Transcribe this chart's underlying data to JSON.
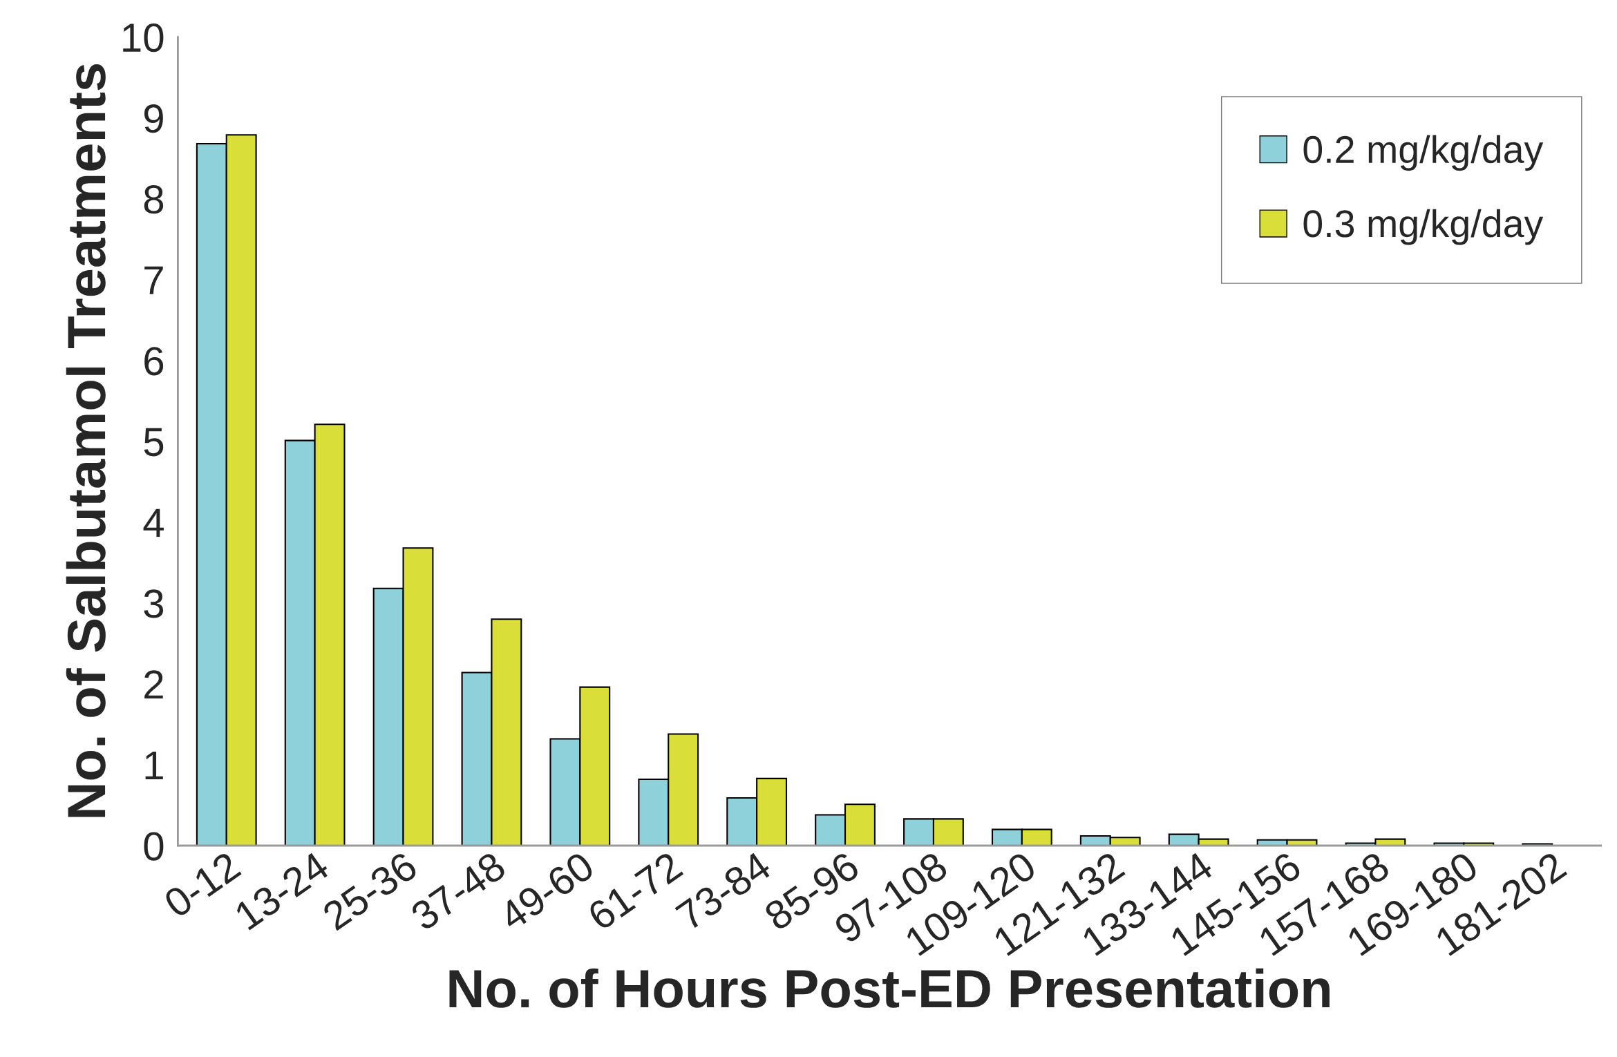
{
  "chart_data": {
    "type": "bar",
    "xlabel": "No. of Hours Post-ED Presentation",
    "ylabel": "No. of Salbutamol Treatments",
    "categories": [
      "0-12",
      "13-24",
      "25-36",
      "37-48",
      "49-60",
      "61-72",
      "73-84",
      "85-96",
      "97-108",
      "109-120",
      "121-132",
      "133-144",
      "145-156",
      "157-168",
      "169-180",
      "181-202"
    ],
    "series": [
      {
        "name": "0.2 mg/kg/day",
        "color": "#8fd1da",
        "values": [
          8.68,
          5.01,
          3.18,
          2.14,
          1.32,
          0.82,
          0.59,
          0.38,
          0.33,
          0.2,
          0.12,
          0.14,
          0.07,
          0.03,
          0.03,
          0.02
        ]
      },
      {
        "name": "0.3 mg/kg/day",
        "color": "#d9df38",
        "values": [
          8.79,
          5.21,
          3.68,
          2.8,
          1.96,
          1.38,
          0.83,
          0.51,
          0.33,
          0.2,
          0.1,
          0.08,
          0.07,
          0.08,
          0.03,
          null
        ]
      }
    ],
    "ylim": [
      0,
      10
    ],
    "yticks": [
      0,
      1,
      2,
      3,
      4,
      5,
      6,
      7,
      8,
      9,
      10
    ],
    "grid": false,
    "legend": "top right"
  }
}
